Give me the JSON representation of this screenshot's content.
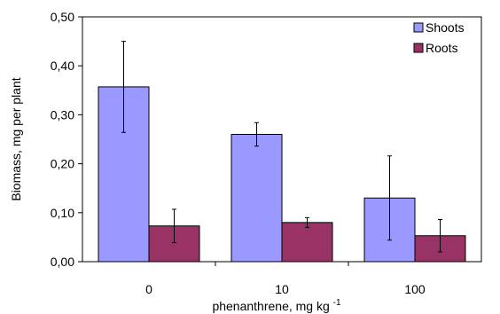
{
  "chart_data": {
    "type": "bar",
    "categories": [
      "0",
      "10",
      "100"
    ],
    "series": [
      {
        "name": "Shoots",
        "color": "#9999ff",
        "values": [
          0.357,
          0.26,
          0.13
        ],
        "error": [
          0.093,
          0.024,
          0.086
        ]
      },
      {
        "name": "Roots",
        "color": "#993366",
        "values": [
          0.073,
          0.08,
          0.053
        ],
        "error": [
          0.034,
          0.01,
          0.033
        ]
      }
    ],
    "title": "",
    "xlabel": "phenanthrene, mg kg",
    "xlabel_superscript": "-1",
    "ylabel": "Biomass, mg per plant",
    "ylim": [
      0,
      0.5
    ],
    "yticks": [
      "0,00",
      "0,10",
      "0,20",
      "0,30",
      "0,40",
      "0,50"
    ],
    "grid": false,
    "legend_position": "top-right"
  }
}
